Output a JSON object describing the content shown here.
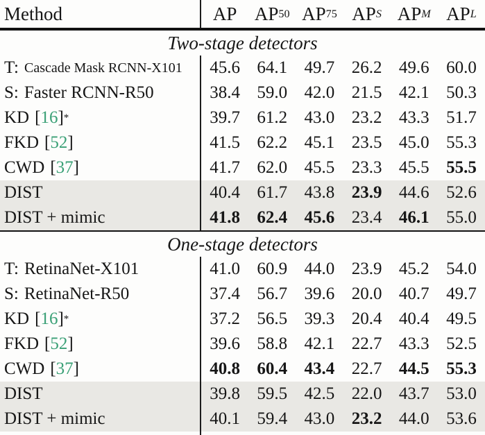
{
  "table": {
    "header": {
      "method_label": "Method",
      "columns": [
        {
          "base": "AP",
          "sub": ""
        },
        {
          "base": "AP",
          "sub": "50"
        },
        {
          "base": "AP",
          "sub": "75"
        },
        {
          "base": "AP",
          "sub": "S"
        },
        {
          "base": "AP",
          "sub": "M"
        },
        {
          "base": "AP",
          "sub": "L"
        }
      ]
    },
    "symbols": {
      "bracket_open": "[",
      "bracket_close": "]",
      "star": "*"
    },
    "sections": [
      {
        "title": "Two-stage detectors",
        "rows": [
          {
            "prefix": "T:",
            "name": "Cascade Mask RCNN-X101",
            "values": [
              "45.6",
              "64.1",
              "49.7",
              "26.2",
              "49.6",
              "60.0"
            ]
          },
          {
            "prefix": "S:",
            "name": "Faster RCNN-R50",
            "values": [
              "38.4",
              "59.0",
              "42.0",
              "21.5",
              "42.1",
              "50.3"
            ]
          },
          {
            "name": "KD",
            "cite": "16",
            "starred": true,
            "values": [
              "39.7",
              "61.2",
              "43.0",
              "23.2",
              "43.3",
              "51.7"
            ]
          },
          {
            "name": "FKD",
            "cite": "52",
            "values": [
              "41.5",
              "62.2",
              "45.1",
              "23.5",
              "45.0",
              "55.3"
            ]
          },
          {
            "name": "CWD",
            "cite": "37",
            "values": [
              "41.7",
              "62.0",
              "45.5",
              "23.3",
              "45.5",
              "55.5"
            ],
            "bold_columns": [
              5
            ]
          },
          {
            "name": "DIST",
            "shaded": true,
            "values": [
              "40.4",
              "61.7",
              "43.8",
              "23.9",
              "44.6",
              "52.6"
            ],
            "bold_columns": [
              3
            ]
          },
          {
            "name": "DIST + mimic",
            "shaded": true,
            "values": [
              "41.8",
              "62.4",
              "45.6",
              "23.4",
              "46.1",
              "55.0"
            ],
            "bold_columns": [
              0,
              1,
              2,
              4
            ]
          }
        ]
      },
      {
        "title": "One-stage detectors",
        "rows": [
          {
            "prefix": "T:",
            "name": "RetinaNet-X101",
            "values": [
              "41.0",
              "60.9",
              "44.0",
              "23.9",
              "45.2",
              "54.0"
            ]
          },
          {
            "prefix": "S:",
            "name": "RetinaNet-R50",
            "values": [
              "37.4",
              "56.7",
              "39.6",
              "20.0",
              "40.7",
              "49.7"
            ]
          },
          {
            "name": "KD",
            "cite": "16",
            "starred": true,
            "values": [
              "37.2",
              "56.5",
              "39.3",
              "20.4",
              "40.4",
              "49.5"
            ]
          },
          {
            "name": "FKD",
            "cite": "52",
            "values": [
              "39.6",
              "58.8",
              "42.1",
              "22.7",
              "43.3",
              "52.5"
            ]
          },
          {
            "name": "CWD",
            "cite": "37",
            "values": [
              "40.8",
              "60.4",
              "43.4",
              "22.7",
              "44.5",
              "55.3"
            ],
            "bold_columns": [
              0,
              1,
              2,
              4,
              5
            ]
          },
          {
            "name": "DIST",
            "shaded": true,
            "values": [
              "39.8",
              "59.5",
              "42.5",
              "22.0",
              "43.7",
              "53.0"
            ]
          },
          {
            "name": "DIST + mimic",
            "shaded": true,
            "values": [
              "40.1",
              "59.4",
              "43.0",
              "23.2",
              "44.0",
              "53.6"
            ],
            "bold_columns": [
              3
            ]
          }
        ]
      }
    ]
  },
  "colors": {
    "citation_green": "#3aa076",
    "shaded_row_bg": "#e9e8e4",
    "text": "#161616",
    "rule": "#121212"
  }
}
